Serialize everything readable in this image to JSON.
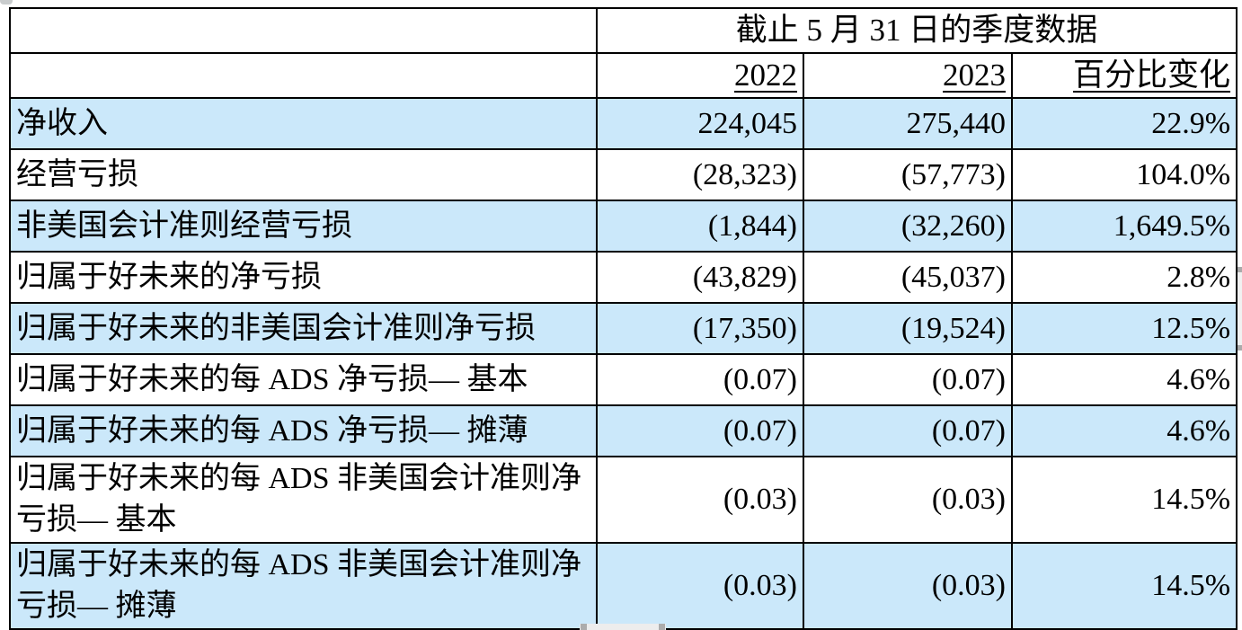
{
  "table": {
    "title": "截止 5 月 31 日的季度数据",
    "col_headers": [
      "2022",
      "2023",
      "百分比变化"
    ],
    "rows": [
      {
        "label": "净收入",
        "v2022": "224,045",
        "v2023": "275,440",
        "pct": "22.9%",
        "highlight": true
      },
      {
        "label": "经营亏损",
        "v2022": "(28,323)",
        "v2023": "(57,773)",
        "pct": "104.0%",
        "highlight": false
      },
      {
        "label": "非美国会计准则经营亏损",
        "v2022": "(1,844)",
        "v2023": "(32,260)",
        "pct": "1,649.5%",
        "highlight": true
      },
      {
        "label": "归属于好未来的净亏损",
        "v2022": "(43,829)",
        "v2023": "(45,037)",
        "pct": "2.8%",
        "highlight": false
      },
      {
        "label": "归属于好未来的非美国会计准则净亏损",
        "v2022": "(17,350)",
        "v2023": "(19,524)",
        "pct": "12.5%",
        "highlight": true
      },
      {
        "label": "归属于好未来的每 ADS 净亏损— 基本",
        "v2022": "(0.07)",
        "v2023": "(0.07)",
        "pct": "4.6%",
        "highlight": false
      },
      {
        "label": "归属于好未来的每 ADS 净亏损— 摊薄",
        "v2022": "(0.07)",
        "v2023": "(0.07)",
        "pct": "4.6%",
        "highlight": true
      },
      {
        "label": "归属于好未来的每 ADS 非美国会计准则净亏损— 基本",
        "v2022": "(0.03)",
        "v2023": "(0.03)",
        "pct": "14.5%",
        "highlight": false
      },
      {
        "label": "归属于好未来的每 ADS 非美国会计准则净亏损— 摊薄",
        "v2022": "(0.03)",
        "v2023": "(0.03)",
        "pct": "14.5%",
        "highlight": true
      }
    ],
    "colors": {
      "highlight_row": "#cbe8fa",
      "border": "#000000"
    }
  }
}
